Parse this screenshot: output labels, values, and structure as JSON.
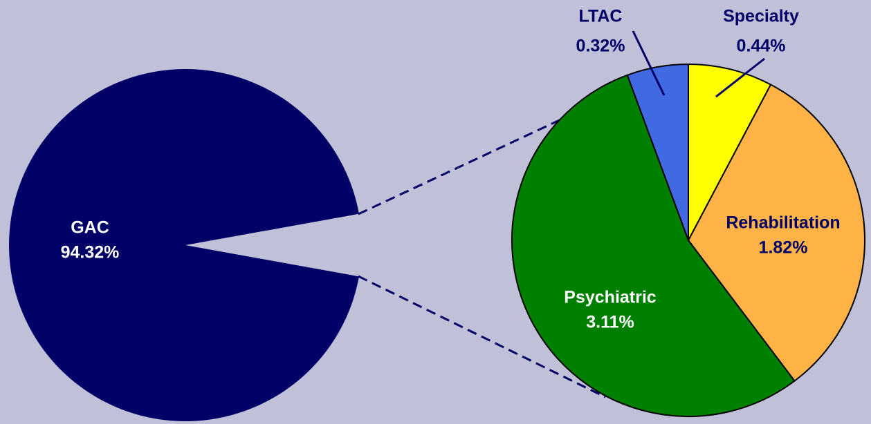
{
  "chart_data": {
    "type": "pie",
    "categories": [
      "GAC",
      "Specialty",
      "Rehabilitation",
      "Psychiatric",
      "LTAC"
    ],
    "values": [
      94.32,
      0.44,
      1.82,
      3.11,
      0.32
    ],
    "value_labels": [
      "94.32%",
      "0.44%",
      "1.82%",
      "3.11%",
      "0.32%"
    ],
    "colors": [
      "#000066",
      "#ffff00",
      "#ffb347",
      "#008000",
      "#4169e1"
    ]
  }
}
